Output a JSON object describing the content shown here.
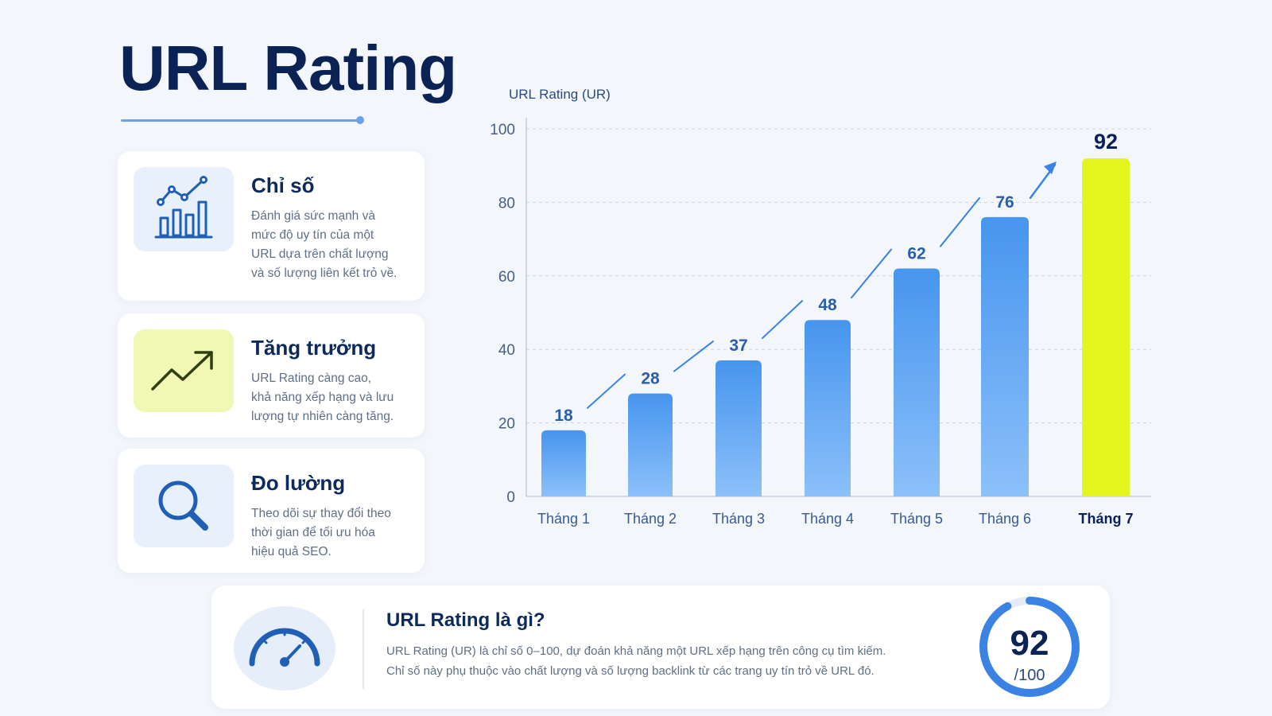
{
  "page": {
    "title": "URL Rating"
  },
  "cards": [
    {
      "title": "Chỉ số",
      "icon": "bar-line-chart-icon",
      "lines": [
        "Đánh giá sức mạnh và",
        "mức độ uy tín của một",
        "URL dựa trên chất lượng",
        "và số lượng liên kết trỏ về."
      ]
    },
    {
      "title": "Tăng trưởng",
      "icon": "trend-up-arrow-icon",
      "lines": [
        "URL Rating càng cao,",
        "khả năng xếp hạng và lưu",
        "lượng tự nhiên càng tăng."
      ]
    },
    {
      "title": "Đo lường",
      "icon": "magnifier-icon",
      "lines": [
        "Theo dõi sự thay đổi theo",
        "thời gian để tối ưu hóa",
        "hiệu quả SEO."
      ]
    }
  ],
  "chart_data": {
    "type": "bar",
    "ylabel": "URL Rating (UR)",
    "categories": [
      "Tháng 1",
      "Tháng 2",
      "Tháng 3",
      "Tháng 4",
      "Tháng 5",
      "Tháng 6",
      "Tháng 7"
    ],
    "values": [
      18,
      28,
      37,
      48,
      62,
      76,
      92
    ],
    "yticks": [
      0,
      20,
      40,
      60,
      80,
      100
    ],
    "ylim": [
      0,
      100
    ],
    "grid": true,
    "trend_arrow": true,
    "colors": {
      "bar": "#4f9af0",
      "highlight": "#e4f51d",
      "axis_text": "#4a5f80",
      "label": "#2a5ea8"
    },
    "highlight_index": 6
  },
  "summary": {
    "icon": "speedometer-icon",
    "title": "URL Rating là gì?",
    "lines": [
      "URL Rating (UR) là chỉ số 0–100, dự đoán khả năng một URL xếp hạng trên công cụ tìm kiếm.",
      "Chỉ số này phụ thuộc vào chất lượng và số lượng backlink từ các trang uy tín trỏ về URL đó."
    ],
    "score": "92",
    "score_max": "/100",
    "score_fraction": 0.92
  }
}
